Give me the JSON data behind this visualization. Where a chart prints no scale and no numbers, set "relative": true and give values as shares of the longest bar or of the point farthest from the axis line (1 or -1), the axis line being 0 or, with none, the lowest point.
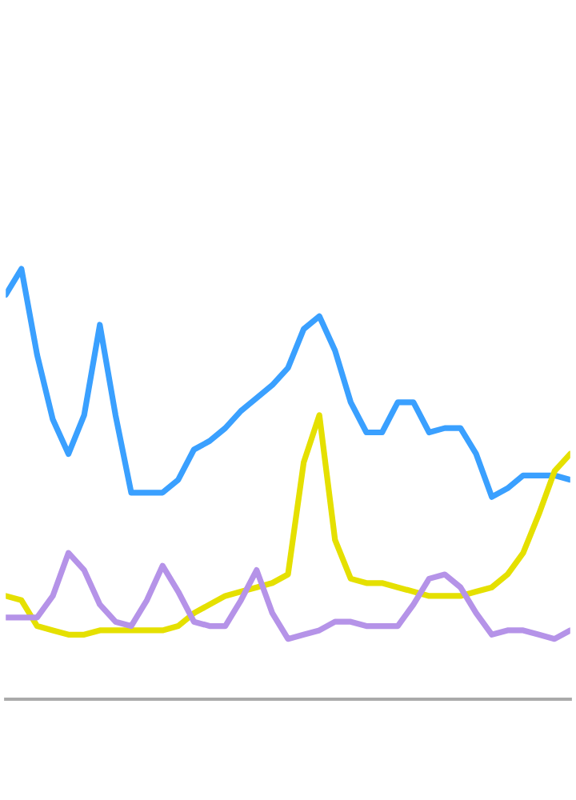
{
  "chart_data": {
    "type": "line",
    "relative": true,
    "legend": false,
    "line_style": "solid",
    "marker": "none",
    "categories": [
      null,
      null,
      null,
      null,
      null,
      null,
      null,
      null,
      null,
      null,
      null,
      null,
      null,
      null,
      null,
      null,
      null,
      null,
      null,
      null,
      null,
      null,
      null,
      null,
      null,
      null,
      null,
      null,
      null,
      null,
      null,
      null,
      null,
      null,
      null,
      null,
      null
    ],
    "series": [
      {
        "color": "#3aa0ff",
        "values": [
          0.94,
          1.0,
          0.8,
          0.65,
          0.57,
          0.66,
          0.87,
          0.66,
          0.48,
          0.48,
          0.48,
          0.51,
          0.58,
          0.6,
          0.63,
          0.67,
          0.7,
          0.73,
          0.77,
          0.86,
          0.89,
          0.81,
          0.69,
          0.62,
          0.62,
          0.69,
          0.69,
          0.62,
          0.63,
          0.63,
          0.57,
          0.47,
          0.49,
          0.52,
          0.52,
          0.52,
          0.51
        ]
      },
      {
        "color": "#e5e000",
        "values": [
          0.24,
          0.23,
          0.17,
          0.16,
          0.15,
          0.15,
          0.16,
          0.16,
          0.16,
          0.16,
          0.16,
          0.17,
          0.2,
          0.22,
          0.24,
          0.25,
          0.26,
          0.27,
          0.29,
          0.55,
          0.66,
          0.37,
          0.28,
          0.27,
          0.27,
          0.26,
          0.25,
          0.24,
          0.24,
          0.24,
          0.25,
          0.26,
          0.29,
          0.34,
          0.43,
          0.53,
          0.57
        ]
      },
      {
        "color": "#b593e8",
        "values": [
          0.19,
          0.19,
          0.19,
          0.24,
          0.34,
          0.3,
          0.22,
          0.18,
          0.17,
          0.23,
          0.31,
          0.25,
          0.18,
          0.17,
          0.17,
          0.23,
          0.3,
          0.2,
          0.14,
          0.15,
          0.16,
          0.18,
          0.18,
          0.17,
          0.17,
          0.17,
          0.22,
          0.28,
          0.29,
          0.26,
          0.2,
          0.15,
          0.16,
          0.16,
          0.15,
          0.14,
          0.16
        ]
      }
    ]
  }
}
